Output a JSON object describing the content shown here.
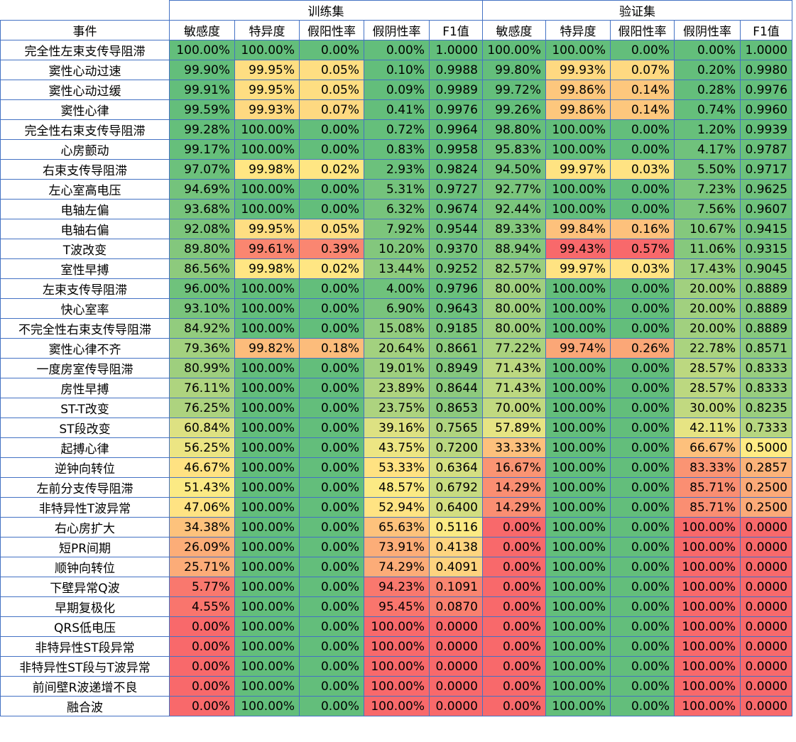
{
  "chart_data": {
    "type": "table",
    "groups": [
      "训练集",
      "验证集"
    ],
    "event_header": "事件",
    "metric_headers": [
      "敏感度",
      "特异度",
      "假阳性率",
      "假阴性率",
      "F1值"
    ],
    "colors": {
      "good": "#63be7b",
      "mid": "#ffeb84",
      "bad": "#f8696b"
    },
    "rows": [
      {
        "event": "完全性左束支传导阻滞",
        "train": [
          "100.00%",
          "100.00%",
          "0.00%",
          "0.00%",
          "1.0000"
        ],
        "val": [
          "100.00%",
          "100.00%",
          "0.00%",
          "0.00%",
          "1.0000"
        ]
      },
      {
        "event": "窦性心动过速",
        "train": [
          "99.90%",
          "99.95%",
          "0.05%",
          "0.10%",
          "0.9988"
        ],
        "val": [
          "99.80%",
          "99.93%",
          "0.07%",
          "0.20%",
          "0.9980"
        ]
      },
      {
        "event": "窦性心动过缓",
        "train": [
          "99.91%",
          "99.95%",
          "0.05%",
          "0.09%",
          "0.9989"
        ],
        "val": [
          "99.72%",
          "99.86%",
          "0.14%",
          "0.28%",
          "0.9976"
        ]
      },
      {
        "event": "窦性心律",
        "train": [
          "99.59%",
          "99.93%",
          "0.07%",
          "0.41%",
          "0.9976"
        ],
        "val": [
          "99.26%",
          "99.86%",
          "0.14%",
          "0.74%",
          "0.9960"
        ]
      },
      {
        "event": "完全性右束支传导阻滞",
        "train": [
          "99.28%",
          "100.00%",
          "0.00%",
          "0.72%",
          "0.9964"
        ],
        "val": [
          "98.80%",
          "100.00%",
          "0.00%",
          "1.20%",
          "0.9939"
        ]
      },
      {
        "event": "心房颤动",
        "train": [
          "99.17%",
          "100.00%",
          "0.00%",
          "0.83%",
          "0.9958"
        ],
        "val": [
          "95.83%",
          "100.00%",
          "0.00%",
          "4.17%",
          "0.9787"
        ]
      },
      {
        "event": "右束支传导阻滞",
        "train": [
          "97.07%",
          "99.98%",
          "0.02%",
          "2.93%",
          "0.9824"
        ],
        "val": [
          "94.50%",
          "99.97%",
          "0.03%",
          "5.50%",
          "0.9717"
        ]
      },
      {
        "event": "左心室高电压",
        "train": [
          "94.69%",
          "100.00%",
          "0.00%",
          "5.31%",
          "0.9727"
        ],
        "val": [
          "92.77%",
          "100.00%",
          "0.00%",
          "7.23%",
          "0.9625"
        ]
      },
      {
        "event": "电轴左偏",
        "train": [
          "93.68%",
          "100.00%",
          "0.00%",
          "6.32%",
          "0.9674"
        ],
        "val": [
          "92.44%",
          "100.00%",
          "0.00%",
          "7.56%",
          "0.9607"
        ]
      },
      {
        "event": "电轴右偏",
        "train": [
          "92.08%",
          "99.95%",
          "0.05%",
          "7.92%",
          "0.9544"
        ],
        "val": [
          "89.33%",
          "99.84%",
          "0.16%",
          "10.67%",
          "0.9415"
        ]
      },
      {
        "event": "T波改变",
        "train": [
          "89.80%",
          "99.61%",
          "0.39%",
          "10.20%",
          "0.9370"
        ],
        "val": [
          "88.94%",
          "99.43%",
          "0.57%",
          "11.06%",
          "0.9315"
        ]
      },
      {
        "event": "室性早搏",
        "train": [
          "86.56%",
          "99.98%",
          "0.02%",
          "13.44%",
          "0.9252"
        ],
        "val": [
          "82.57%",
          "99.97%",
          "0.03%",
          "17.43%",
          "0.9045"
        ]
      },
      {
        "event": "左束支传导阻滞",
        "train": [
          "96.00%",
          "100.00%",
          "0.00%",
          "4.00%",
          "0.9796"
        ],
        "val": [
          "80.00%",
          "100.00%",
          "0.00%",
          "20.00%",
          "0.8889"
        ]
      },
      {
        "event": "快心室率",
        "train": [
          "93.10%",
          "100.00%",
          "0.00%",
          "6.90%",
          "0.9643"
        ],
        "val": [
          "80.00%",
          "100.00%",
          "0.00%",
          "20.00%",
          "0.8889"
        ]
      },
      {
        "event": "不完全性右束支传导阻滞",
        "train": [
          "84.92%",
          "100.00%",
          "0.00%",
          "15.08%",
          "0.9185"
        ],
        "val": [
          "80.00%",
          "100.00%",
          "0.00%",
          "20.00%",
          "0.8889"
        ]
      },
      {
        "event": "窦性心律不齐",
        "train": [
          "79.36%",
          "99.82%",
          "0.18%",
          "20.64%",
          "0.8661"
        ],
        "val": [
          "77.22%",
          "99.74%",
          "0.26%",
          "22.78%",
          "0.8571"
        ]
      },
      {
        "event": "一度房室传导阻滞",
        "train": [
          "80.99%",
          "100.00%",
          "0.00%",
          "19.01%",
          "0.8949"
        ],
        "val": [
          "71.43%",
          "100.00%",
          "0.00%",
          "28.57%",
          "0.8333"
        ]
      },
      {
        "event": "房性早搏",
        "train": [
          "76.11%",
          "100.00%",
          "0.00%",
          "23.89%",
          "0.8644"
        ],
        "val": [
          "71.43%",
          "100.00%",
          "0.00%",
          "28.57%",
          "0.8333"
        ]
      },
      {
        "event": "ST-T改变",
        "train": [
          "76.25%",
          "100.00%",
          "0.00%",
          "23.75%",
          "0.8653"
        ],
        "val": [
          "70.00%",
          "100.00%",
          "0.00%",
          "30.00%",
          "0.8235"
        ]
      },
      {
        "event": "ST段改变",
        "train": [
          "60.84%",
          "100.00%",
          "0.00%",
          "39.16%",
          "0.7565"
        ],
        "val": [
          "57.89%",
          "100.00%",
          "0.00%",
          "42.11%",
          "0.7333"
        ]
      },
      {
        "event": "起搏心律",
        "train": [
          "56.25%",
          "100.00%",
          "0.00%",
          "43.75%",
          "0.7200"
        ],
        "val": [
          "33.33%",
          "100.00%",
          "0.00%",
          "66.67%",
          "0.5000"
        ]
      },
      {
        "event": "逆钟向转位",
        "train": [
          "46.67%",
          "100.00%",
          "0.00%",
          "53.33%",
          "0.6364"
        ],
        "val": [
          "16.67%",
          "100.00%",
          "0.00%",
          "83.33%",
          "0.2857"
        ]
      },
      {
        "event": "左前分支传导阻滞",
        "train": [
          "51.43%",
          "100.00%",
          "0.00%",
          "48.57%",
          "0.6792"
        ],
        "val": [
          "14.29%",
          "100.00%",
          "0.00%",
          "85.71%",
          "0.2500"
        ]
      },
      {
        "event": "非特异性T波异常",
        "train": [
          "47.06%",
          "100.00%",
          "0.00%",
          "52.94%",
          "0.6400"
        ],
        "val": [
          "14.29%",
          "100.00%",
          "0.00%",
          "85.71%",
          "0.2500"
        ]
      },
      {
        "event": "右心房扩大",
        "train": [
          "34.38%",
          "100.00%",
          "0.00%",
          "65.63%",
          "0.5116"
        ],
        "val": [
          "0.00%",
          "100.00%",
          "0.00%",
          "100.00%",
          "0.0000"
        ]
      },
      {
        "event": "短PR间期",
        "train": [
          "26.09%",
          "100.00%",
          "0.00%",
          "73.91%",
          "0.4138"
        ],
        "val": [
          "0.00%",
          "100.00%",
          "0.00%",
          "100.00%",
          "0.0000"
        ]
      },
      {
        "event": "顺钟向转位",
        "train": [
          "25.71%",
          "100.00%",
          "0.00%",
          "74.29%",
          "0.4091"
        ],
        "val": [
          "0.00%",
          "100.00%",
          "0.00%",
          "100.00%",
          "0.0000"
        ]
      },
      {
        "event": "下壁异常Q波",
        "train": [
          "5.77%",
          "100.00%",
          "0.00%",
          "94.23%",
          "0.1091"
        ],
        "val": [
          "0.00%",
          "100.00%",
          "0.00%",
          "100.00%",
          "0.0000"
        ]
      },
      {
        "event": "早期复极化",
        "train": [
          "4.55%",
          "100.00%",
          "0.00%",
          "95.45%",
          "0.0870"
        ],
        "val": [
          "0.00%",
          "100.00%",
          "0.00%",
          "100.00%",
          "0.0000"
        ]
      },
      {
        "event": "QRS低电压",
        "train": [
          "0.00%",
          "100.00%",
          "0.00%",
          "100.00%",
          "0.0000"
        ],
        "val": [
          "0.00%",
          "100.00%",
          "0.00%",
          "100.00%",
          "0.0000"
        ]
      },
      {
        "event": "非特异性ST段异常",
        "train": [
          "0.00%",
          "100.00%",
          "0.00%",
          "100.00%",
          "0.0000"
        ],
        "val": [
          "0.00%",
          "100.00%",
          "0.00%",
          "100.00%",
          "0.0000"
        ]
      },
      {
        "event": "非特异性ST段与T波异常",
        "train": [
          "0.00%",
          "100.00%",
          "0.00%",
          "100.00%",
          "0.0000"
        ],
        "val": [
          "0.00%",
          "100.00%",
          "0.00%",
          "100.00%",
          "0.0000"
        ]
      },
      {
        "event": "前间壁R波递增不良",
        "train": [
          "0.00%",
          "100.00%",
          "0.00%",
          "100.00%",
          "0.0000"
        ],
        "val": [
          "0.00%",
          "100.00%",
          "0.00%",
          "100.00%",
          "0.0000"
        ]
      },
      {
        "event": "融合波",
        "train": [
          "0.00%",
          "100.00%",
          "0.00%",
          "100.00%",
          "0.0000"
        ],
        "val": [
          "0.00%",
          "100.00%",
          "0.00%",
          "100.00%",
          "0.0000"
        ]
      }
    ]
  }
}
